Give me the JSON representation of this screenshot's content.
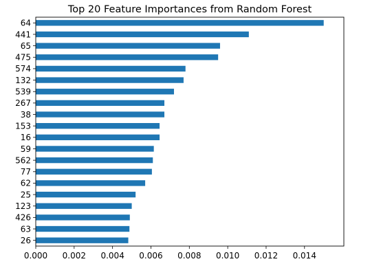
{
  "chart_data": {
    "type": "bar",
    "orientation": "horizontal",
    "title": "Top 20 Feature Importances from Random Forest",
    "xlabel": "",
    "ylabel": "",
    "categories": [
      "64",
      "441",
      "65",
      "475",
      "574",
      "132",
      "539",
      "267",
      "38",
      "153",
      "16",
      "59",
      "562",
      "77",
      "62",
      "25",
      "123",
      "426",
      "63",
      "26"
    ],
    "values": [
      0.015,
      0.0111,
      0.0096,
      0.0095,
      0.0078,
      0.0077,
      0.0072,
      0.0067,
      0.0067,
      0.00645,
      0.00645,
      0.00615,
      0.0061,
      0.00605,
      0.0057,
      0.0052,
      0.005,
      0.0049,
      0.00488,
      0.00482
    ],
    "xlim": [
      0,
      0.01605
    ],
    "xticks": [
      "0.000",
      "0.002",
      "0.004",
      "0.006",
      "0.008",
      "0.010",
      "0.012",
      "0.014"
    ],
    "xtick_values": [
      0,
      0.002,
      0.004,
      0.006,
      0.008,
      0.01,
      0.012,
      0.014
    ],
    "bar_color": "#1f77b4",
    "grid": false,
    "legend": "none"
  }
}
